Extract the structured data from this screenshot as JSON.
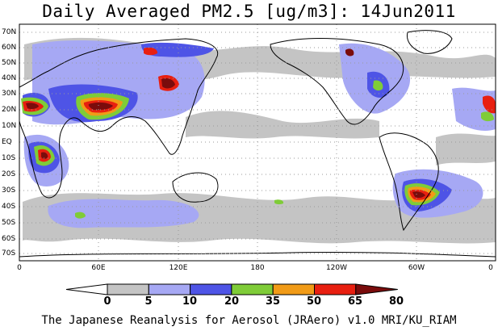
{
  "title": "Daily Averaged PM2.5 [ug/m3]: 14Jun2011",
  "footer": "The Japanese Reanalysis for Aerosol (JRAero) v1.0 MRI/KU_RIAM",
  "lat_labels": [
    "70N",
    "60N",
    "50N",
    "40N",
    "30N",
    "20N",
    "10N",
    "EQ",
    "10S",
    "20S",
    "30S",
    "40S",
    "50S",
    "60S",
    "70S"
  ],
  "lon_labels": [
    "0",
    "60E",
    "120E",
    "180",
    "120W",
    "60W",
    "0"
  ],
  "colorbar": {
    "ticks": [
      "0",
      "5",
      "10",
      "20",
      "35",
      "50",
      "65",
      "80"
    ],
    "colors": [
      "#ffffff",
      "#c4c4c4",
      "#a6a8f4",
      "#4e54e6",
      "#7fcc38",
      "#f19b17",
      "#e81f10",
      "#7a0c0c"
    ],
    "colors_hint": "white, gray, light blue, blue, green, orange, red, dark red"
  },
  "colors": {
    "land_outline": "#000000",
    "grid": "#9a9a9a"
  }
}
